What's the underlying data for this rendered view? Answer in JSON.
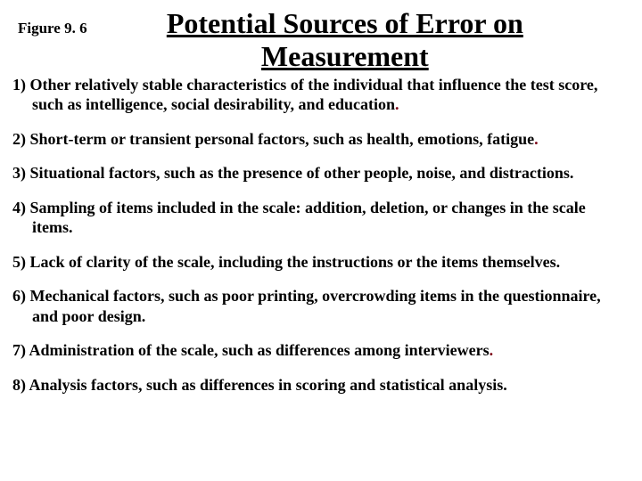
{
  "figure_label": "Figure 9. 6",
  "title": "Potential Sources of Error on Measurement",
  "title_fontsize": 32,
  "body_fontsize": 18,
  "text_color": "#000000",
  "accent_period_color": "#7b0015",
  "background_color": "#ffffff",
  "font_family": "Times New Roman",
  "items": [
    {
      "n": "1)",
      "text": "Other relatively stable characteristics of the individual that influence the test score, such as intelligence, social desirability, and education"
    },
    {
      "n": "2)",
      "text": "Short-term or transient personal factors, such as health, emotions, fatigue"
    },
    {
      "n": "3)",
      "text": "Situational factors, such as the presence of other people, noise, and distractions."
    },
    {
      "n": "4)",
      "text": "Sampling of items included in the scale: addition, deletion, or changes in the scale items."
    },
    {
      "n": "5)",
      "text": "Lack of clarity of the scale, including the instructions or the items themselves."
    },
    {
      "n": "6)",
      "text": "Mechanical factors, such as poor printing, overcrowding items in the questionnaire, and poor design."
    },
    {
      "n": "7)",
      "text": "Administration of the scale, such as differences among interviewers"
    },
    {
      "n": "8)",
      "text": "Analysis factors, such as differences in scoring and statistical analysis."
    }
  ]
}
